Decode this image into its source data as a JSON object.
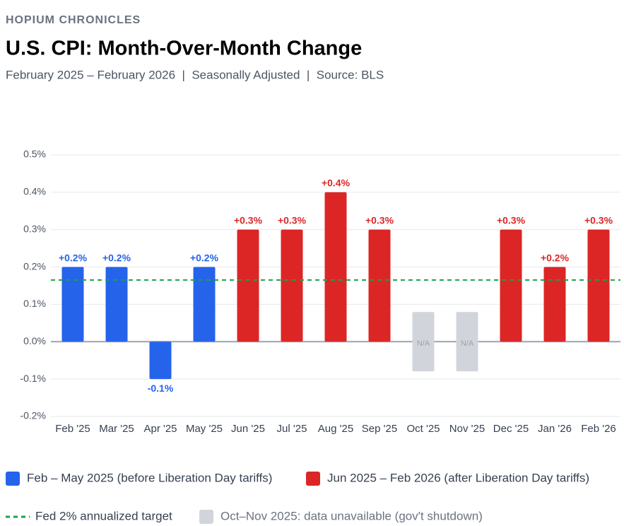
{
  "chart_data": {
    "type": "bar",
    "brand": "HOPIUM CHRONICLES",
    "title": "U.S. CPI: Month-Over-Month Change",
    "subtitle": "February 2025 – February 2026  |  Seasonally Adjusted  |  Source: BLS",
    "categories": [
      "Feb '25",
      "Mar '25",
      "Apr '25",
      "May '25",
      "Jun '25",
      "Jul '25",
      "Aug '25",
      "Sep '25",
      "Oct '25",
      "Nov '25",
      "Dec '25",
      "Jan '26",
      "Feb '26"
    ],
    "series": [
      {
        "name": "Feb – May 2025 (before Liberation Day tariffs)",
        "color": "#2563eb",
        "values": [
          0.2,
          0.2,
          -0.1,
          0.2,
          null,
          null,
          null,
          null,
          null,
          null,
          null,
          null,
          null
        ],
        "value_labels": [
          "+0.2%",
          "+0.2%",
          "-0.1%",
          "+0.2%",
          null,
          null,
          null,
          null,
          null,
          null,
          null,
          null,
          null
        ]
      },
      {
        "name": "Jun 2025 – Feb 2026 (after Liberation Day tariffs)",
        "color": "#dc2626",
        "values": [
          null,
          null,
          null,
          null,
          0.3,
          0.3,
          0.4,
          0.3,
          null,
          null,
          0.3,
          0.2,
          0.3
        ],
        "value_labels": [
          null,
          null,
          null,
          null,
          "+0.3%",
          "+0.3%",
          "+0.4%",
          "+0.3%",
          null,
          null,
          "+0.3%",
          "+0.2%",
          "+0.3%"
        ]
      },
      {
        "name": "Oct–Nov 2025: data unavailable (gov't shutdown)",
        "color": "#d1d5db",
        "values": [
          null,
          null,
          null,
          null,
          null,
          null,
          null,
          null,
          null,
          null,
          null,
          null,
          null
        ],
        "value_labels": [
          null,
          null,
          null,
          null,
          null,
          null,
          null,
          null,
          "N/A",
          "N/A",
          null,
          null,
          null
        ]
      }
    ],
    "target": {
      "name": "Fed 2% annualized target",
      "value": 0.165,
      "color": "#16a34a"
    },
    "ylim": [
      -0.2,
      0.5
    ],
    "yticks": [
      {
        "value": -0.2,
        "label": "-0.2%"
      },
      {
        "value": -0.1,
        "label": "-0.1%"
      },
      {
        "value": 0,
        "label": "0.0%"
      },
      {
        "value": 0.1,
        "label": "0.1%"
      },
      {
        "value": 0.2,
        "label": "0.2%"
      },
      {
        "value": 0.3,
        "label": "0.3%"
      },
      {
        "value": 0.4,
        "label": "0.4%"
      },
      {
        "value": 0.5,
        "label": "0.5%"
      }
    ],
    "grid": true
  }
}
